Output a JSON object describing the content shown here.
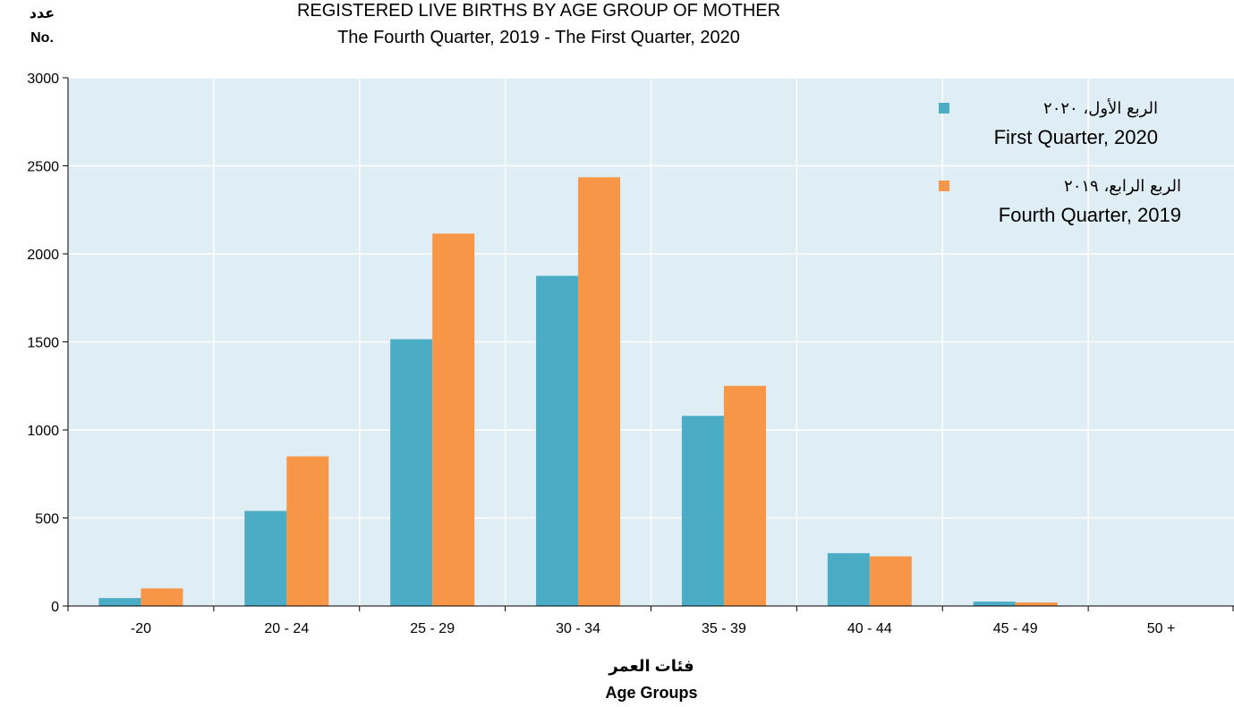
{
  "chart_data": {
    "type": "bar",
    "title": "REGISTERED LIVE BIRTHS BY AGE GROUP OF MOTHER",
    "subtitle": "The Fourth Quarter, 2019 - The First Quarter, 2020",
    "ylabel_ar": "عدد",
    "ylabel": "No.",
    "xlabel_ar": "فئات العمر",
    "xlabel": "Age Groups",
    "categories": [
      "-20",
      "20 - 24",
      "25 - 29",
      "30 - 34",
      "35 - 39",
      "40 - 44",
      "45 - 49",
      "50 +"
    ],
    "ylim": [
      0,
      3000
    ],
    "yticks": [
      0,
      500,
      1000,
      1500,
      2000,
      2500,
      3000
    ],
    "grid": true,
    "legend_position": "top-right",
    "series": [
      {
        "name": "First Quarter, 2020",
        "name_ar": "الربع الأول، ٢٠٢٠",
        "color": "#4bacc6",
        "values": [
          45,
          540,
          1515,
          1875,
          1080,
          300,
          25,
          0
        ]
      },
      {
        "name": "Fourth Quarter, 2019",
        "name_ar": "الربع الرابع، ٢٠١٩",
        "color": "#f79646",
        "values": [
          100,
          850,
          2115,
          2435,
          1250,
          282,
          20,
          0
        ]
      }
    ],
    "plot_background": "#deeef4",
    "grid_color": "#ffffff"
  }
}
